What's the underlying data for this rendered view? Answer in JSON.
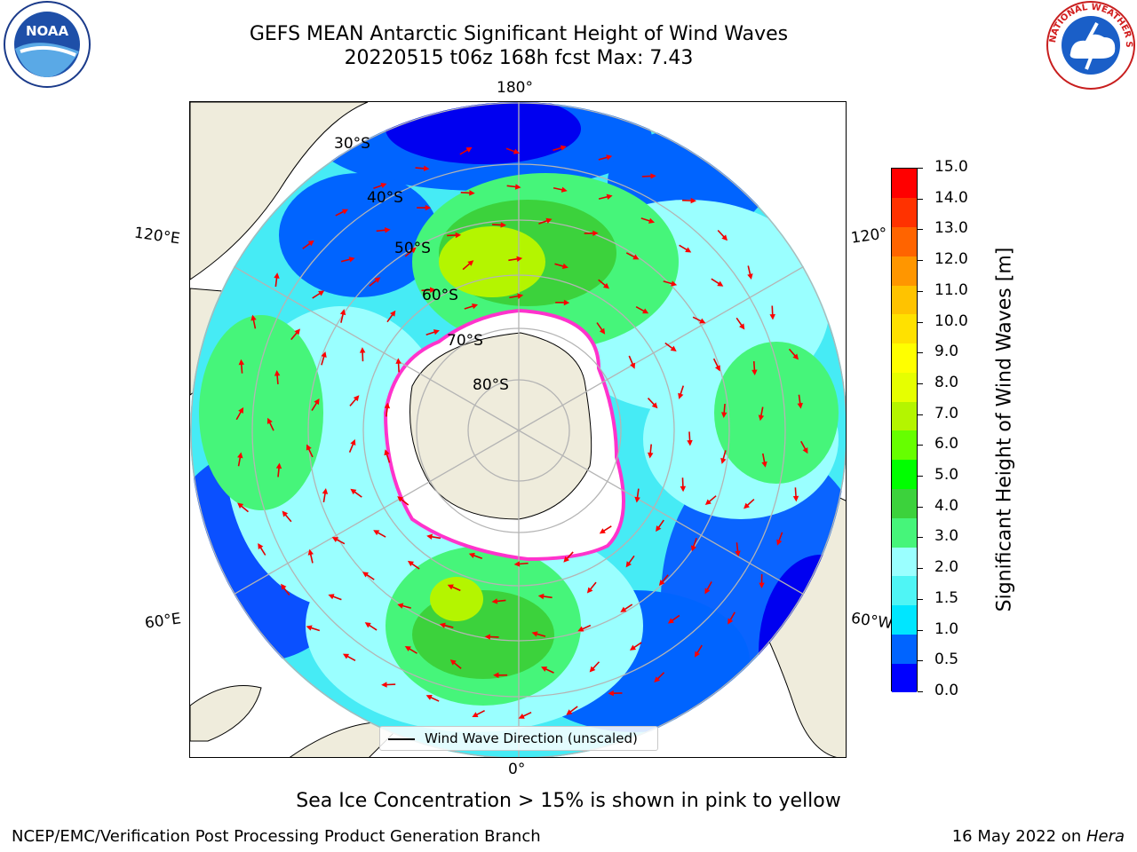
{
  "title_line1": "GEFS MEAN Antarctic Significant Height of Wind Waves",
  "title_line2": "20220515 t06z 168h fcst   Max: 7.43",
  "longitude_labels": {
    "top": "180°",
    "bottom": "0°",
    "left_upper": "120°E",
    "left_lower": "60°E",
    "right_upper": "120°",
    "right_lower": "60°W"
  },
  "latitude_labels": [
    "30°S",
    "40°S",
    "50°S",
    "60°S",
    "70°S",
    "80°S"
  ],
  "legend_text": "Wind Wave Direction (unscaled)",
  "colorbar": {
    "label": "Significant Height of Wind Waves [m]",
    "ticks": [
      "15.0",
      "14.0",
      "13.0",
      "12.0",
      "11.0",
      "10.0",
      "9.0",
      "8.0",
      "7.0",
      "6.0",
      "5.0",
      "4.0",
      "3.0",
      "2.0",
      "1.5",
      "1.0",
      "0.5",
      "0.0"
    ],
    "colors": [
      "#0000ff",
      "#0064ff",
      "#00e6ff",
      "#4ff5f5",
      "#9affff",
      "#46f57a",
      "#3cd23c",
      "#00ff00",
      "#66ff00",
      "#b4f500",
      "#e6ff00",
      "#ffff00",
      "#ffe100",
      "#ffc300",
      "#ff9600",
      "#ff6400",
      "#ff3200",
      "#ff0000"
    ]
  },
  "map_colors": {
    "land": "#efecdc",
    "ice": "#ffffff",
    "ice_edge": "#ff33cc",
    "arrow": "#ff0000",
    "grid": "#b4b4b4"
  },
  "subtitle": "Sea Ice Concentration > 15% is shown in pink to yellow",
  "footer_left": "NCEP/EMC/Verification Post Processing Product Generation Branch",
  "footer_date": "16 May 2022 on ",
  "footer_machine": "Hera",
  "logos": {
    "noaa": "NOAA",
    "nws_ring": "NATIONAL WEATHER SERVICE"
  }
}
